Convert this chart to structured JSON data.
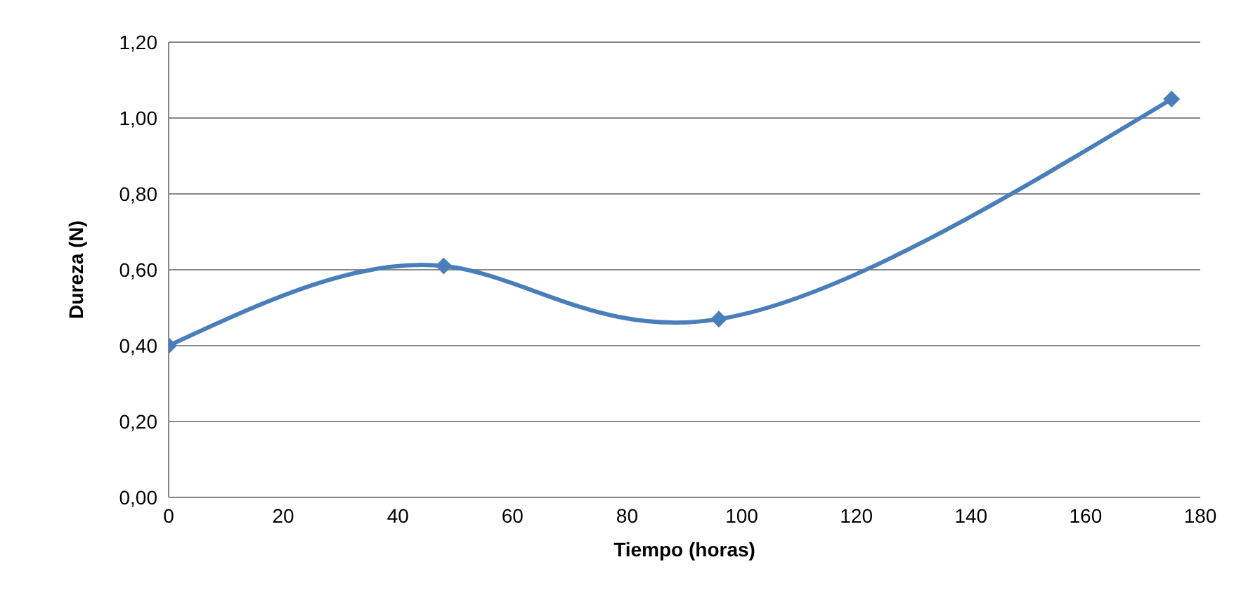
{
  "chart_data": {
    "type": "line",
    "xlabel": "Tiempo (horas)",
    "ylabel": "Dureza (N)",
    "x": [
      0,
      48,
      96,
      175
    ],
    "series": [
      {
        "color": "#4a7ebb",
        "values": [
          0.4,
          0.61,
          0.47,
          1.05
        ]
      }
    ],
    "xlim": [
      0,
      180
    ],
    "xticks": [
      0,
      20,
      40,
      60,
      80,
      100,
      120,
      140,
      160,
      180
    ],
    "ylim": [
      0,
      1.2
    ],
    "yticks": [
      {
        "value": 0,
        "label": "0,00"
      },
      {
        "value": 0.2,
        "label": "0,20"
      },
      {
        "value": 0.4,
        "label": "0,40"
      },
      {
        "value": 0.6,
        "label": "0,60"
      },
      {
        "value": 0.8,
        "label": "0,80"
      },
      {
        "value": 1.0,
        "label": "1,00"
      },
      {
        "value": 1.2,
        "label": "1,20"
      }
    ],
    "grid": "y",
    "marker": "diamond",
    "line_style": "solid",
    "legend": false
  }
}
